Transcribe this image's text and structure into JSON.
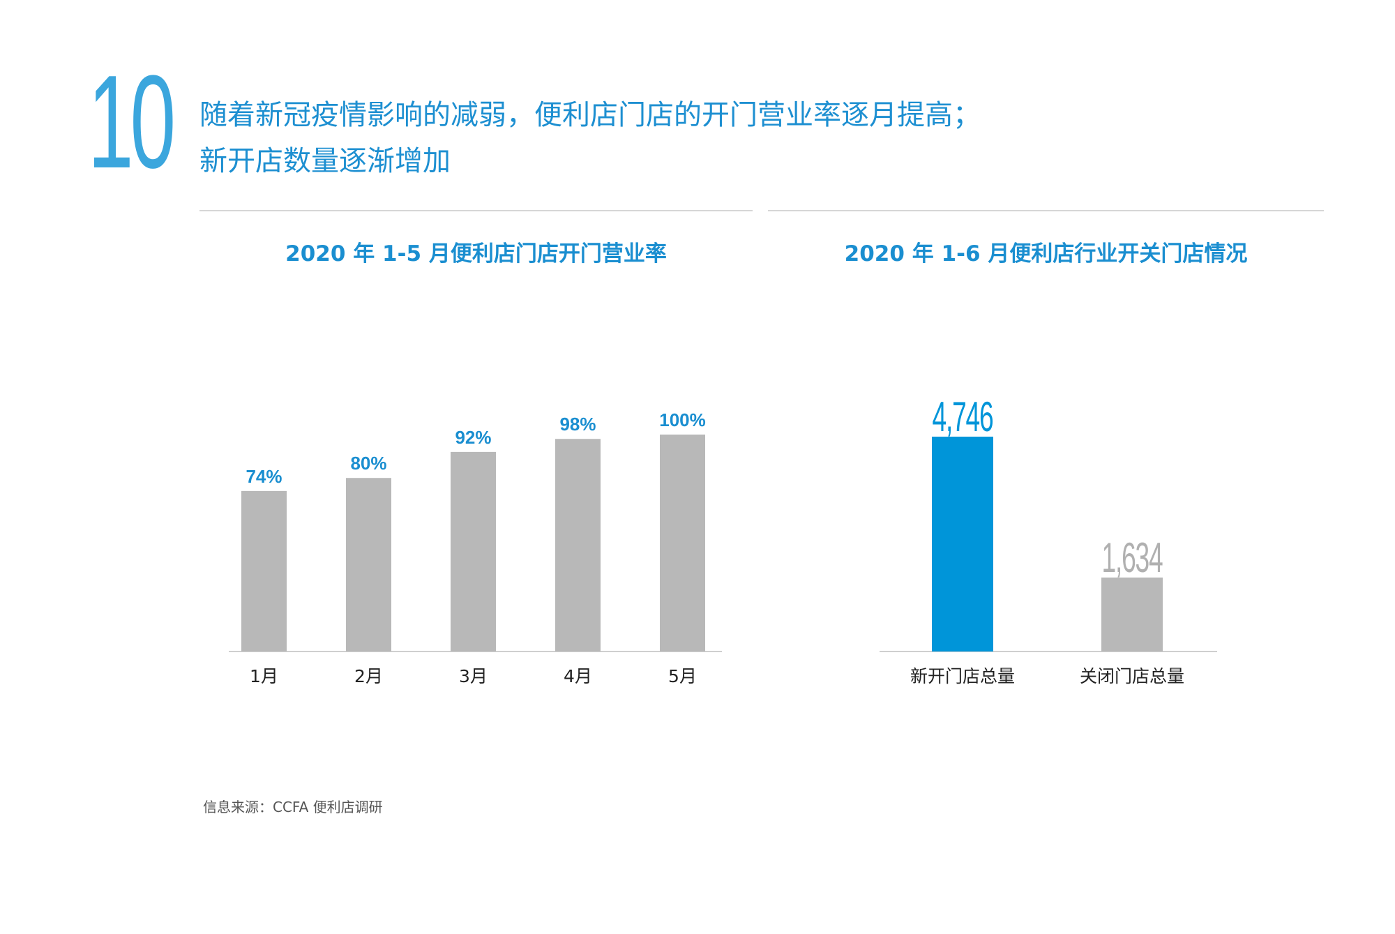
{
  "page": {
    "number": "10",
    "headline": [
      "随着新冠疫情影响的减弱，便利店门店的开门营业率逐月提高；",
      "新开店数量逐渐增加"
    ],
    "source": "信息来源：CCFA 便利店调研"
  },
  "colors": {
    "accent": "#1d8fd1",
    "bar_gray": "#b8b8b8",
    "bar_blue": "#0095d9",
    "axis": "#cfcfcf"
  },
  "chart_data": [
    {
      "type": "bar",
      "title": "2020 年 1-5 月便利店门店开门营业率",
      "categories": [
        "1月",
        "2月",
        "3月",
        "4月",
        "5月"
      ],
      "values": [
        74,
        80,
        92,
        98,
        100
      ],
      "data_labels": [
        "74%",
        "80%",
        "92%",
        "98%",
        "100%"
      ],
      "bar_colors": [
        "#b8b8b8",
        "#b8b8b8",
        "#b8b8b8",
        "#b8b8b8",
        "#b8b8b8"
      ],
      "label_color": "#1a8ed0",
      "ylim": [
        0,
        100
      ],
      "grid": false
    },
    {
      "type": "bar",
      "title": "2020 年 1-6 月便利店行业开关门店情况",
      "categories": [
        "新开门店总量",
        "关闭门店总量"
      ],
      "values": [
        4746,
        1634
      ],
      "data_labels": [
        "4,746",
        "1,634"
      ],
      "bar_colors": [
        "#0095d9",
        "#b8b8b8"
      ],
      "label_colors": [
        "#0095d9",
        "#b0b0b0"
      ],
      "ylim": [
        0,
        4746
      ],
      "grid": false
    }
  ]
}
